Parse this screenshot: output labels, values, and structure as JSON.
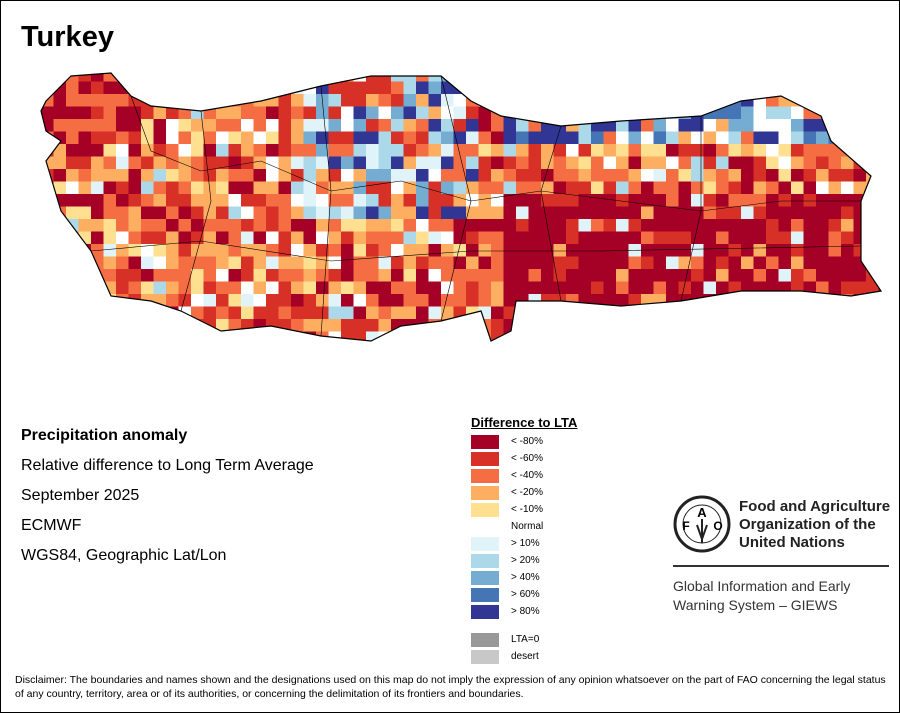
{
  "title": "Turkey",
  "info": {
    "heading": "Precipitation anomaly",
    "line1": "Relative difference to Long Term Average",
    "line2": "September 2025",
    "line3": "ECMWF",
    "line4": "WGS84, Geographic Lat/Lon"
  },
  "legend": {
    "title": "Difference to LTA",
    "items": [
      {
        "label": "< -80%",
        "color": "#a50026"
      },
      {
        "label": "< -60%",
        "color": "#d73027"
      },
      {
        "label": "< -40%",
        "color": "#f46d43"
      },
      {
        "label": "< -20%",
        "color": "#fdae61"
      },
      {
        "label": "< -10%",
        "color": "#fee090"
      },
      {
        "label": "Normal",
        "color": "#ffffff"
      },
      {
        "label": "> 10%",
        "color": "#e0f3f8"
      },
      {
        "label": "> 20%",
        "color": "#abd9e9"
      },
      {
        "label": "> 40%",
        "color": "#74add1"
      },
      {
        "label": "> 60%",
        "color": "#4575b4"
      },
      {
        "label": "> 80%",
        "color": "#313695"
      }
    ],
    "extra": [
      {
        "label": "LTA=0",
        "color": "#999999"
      },
      {
        "label": "desert",
        "color": "#c8c8c8"
      }
    ]
  },
  "org": {
    "line1": "Food and Agriculture",
    "line2": "Organization of the",
    "line3": "United Nations",
    "logo_text": "FAO FIAT PANIS",
    "giews1": "Global Information and Early",
    "giews2": "Warning System – GIEWS"
  },
  "disclaimer": "Disclaimer: The boundaries and names shown and the designations used on this map do not imply the expression of any opinion whatsoever on the part of FAO concerning the legal status of any country, territory, area or of its authorities, or concerning the delimitation of its frontiers and boundaries."
}
